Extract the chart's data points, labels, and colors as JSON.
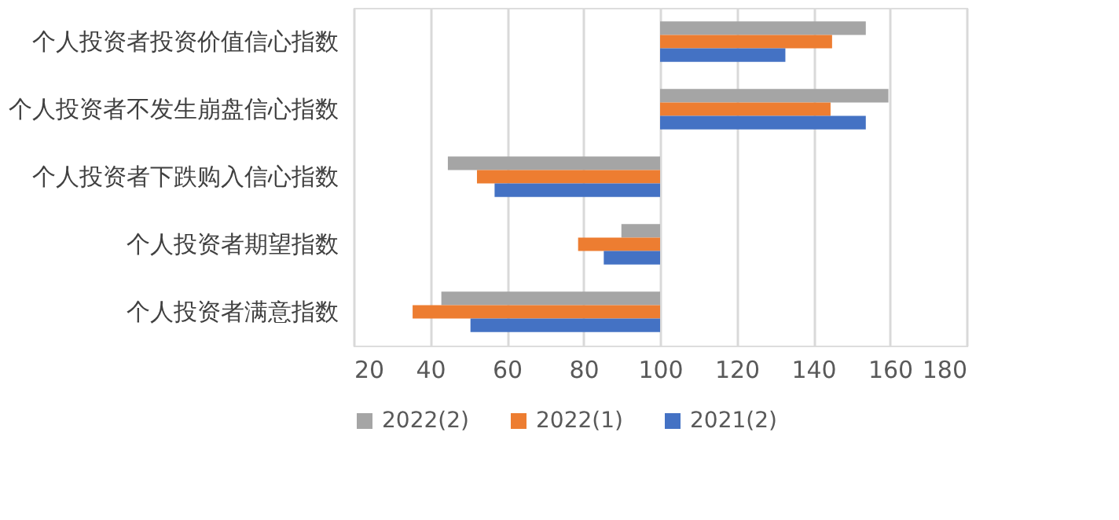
{
  "chart_data": {
    "type": "bar",
    "orientation": "horizontal",
    "categories": [
      "个人投资者投资价值信心指数",
      "个人投资者不发生崩盘信心指数",
      "个人投资者下跌购入信心指数",
      "个人投资者期望指数",
      "个人投资者满意指数"
    ],
    "series": [
      {
        "name": "2022(2)",
        "color": "#a5a5a5",
        "base": [
          100,
          100,
          100,
          100,
          100
        ],
        "values": [
          53.7,
          59.6,
          -55.4,
          -10.1,
          -57.1
        ]
      },
      {
        "name": "2022(1)",
        "color": "#ed7d31",
        "base": [
          100,
          100,
          100,
          100,
          100
        ],
        "values": [
          44.9,
          44.5,
          -47.8,
          -21.4,
          -64.6
        ]
      },
      {
        "name": "2021(2)",
        "color": "#4472c4",
        "base": [
          100,
          100,
          100,
          100,
          100
        ],
        "values": [
          32.7,
          53.7,
          -43.2,
          -14.7,
          -49.5
        ]
      }
    ],
    "xlim": [
      20,
      180
    ],
    "xticks": [
      20,
      40,
      60,
      80,
      100,
      120,
      140,
      160,
      180
    ],
    "grid": "x",
    "legend": "bottom"
  }
}
